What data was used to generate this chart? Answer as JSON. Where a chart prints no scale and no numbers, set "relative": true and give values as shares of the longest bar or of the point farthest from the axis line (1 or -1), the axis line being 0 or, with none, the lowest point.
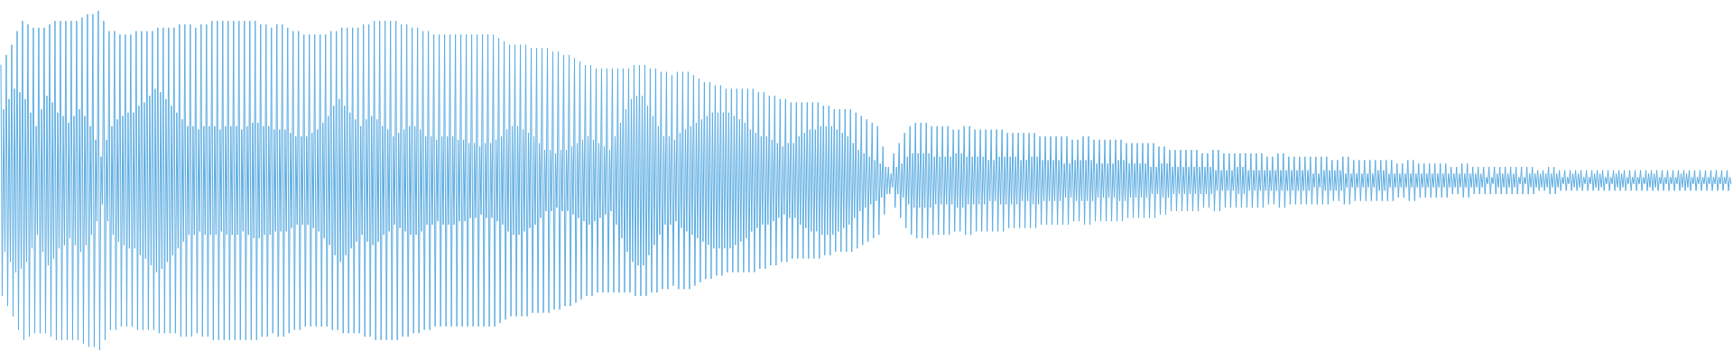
{
  "chart_data": {
    "type": "line",
    "relative": true,
    "categories": [
      null,
      null,
      null,
      null,
      null,
      null,
      null,
      null,
      null,
      null,
      null,
      null,
      null,
      null,
      null,
      null,
      null,
      null,
      null,
      null,
      null,
      null,
      null,
      null,
      null,
      null,
      null,
      null,
      null,
      null,
      null,
      null,
      null,
      null,
      null,
      null,
      null,
      null,
      null,
      null,
      null,
      null,
      null,
      null,
      null,
      null,
      null,
      null,
      null,
      null,
      null,
      null,
      null,
      null,
      null,
      null,
      null,
      null,
      null,
      null,
      null,
      null,
      null,
      null,
      null,
      null,
      null,
      null,
      null,
      null,
      null,
      null,
      null,
      null,
      null,
      null,
      null,
      null,
      null,
      null,
      null,
      null,
      null,
      null,
      null,
      null,
      null,
      null,
      null,
      null,
      null,
      null,
      null,
      null,
      null,
      null,
      null,
      null,
      null,
      null,
      null,
      null,
      null,
      null,
      null,
      null,
      null,
      null,
      null,
      null,
      null,
      null,
      null,
      null,
      null,
      null,
      null,
      null,
      null,
      null,
      null,
      null,
      null,
      null,
      null,
      null,
      null,
      null,
      null,
      null,
      null,
      null,
      null,
      null,
      null,
      null,
      null,
      null,
      null,
      null,
      null,
      null,
      null,
      null,
      null,
      null,
      null,
      null,
      null,
      null,
      null,
      null,
      null,
      null,
      null,
      null,
      null,
      null,
      null,
      null,
      null,
      null,
      null,
      null,
      null,
      null,
      null,
      null,
      null,
      null,
      null,
      null,
      null,
      null,
      null,
      null,
      null,
      null,
      null,
      null,
      null,
      null,
      null,
      null,
      null,
      null,
      null,
      null,
      null,
      null,
      null,
      null,
      null,
      null,
      null,
      null,
      null,
      null,
      null,
      null,
      null,
      null,
      null,
      null,
      null,
      null,
      null,
      null,
      null,
      null,
      null,
      null,
      null,
      null,
      null,
      null,
      null,
      null,
      null,
      null,
      null,
      null,
      null,
      null,
      null,
      null,
      null,
      null,
      null,
      null,
      null,
      null,
      null,
      null,
      null,
      null,
      null,
      null,
      null,
      null,
      null,
      null,
      null,
      null,
      null,
      null,
      null,
      null,
      null,
      null,
      null,
      null,
      null,
      null,
      null,
      null,
      null,
      null,
      null,
      null,
      null,
      null,
      null,
      null,
      null,
      null,
      null,
      null,
      null,
      null,
      null,
      null,
      null,
      null,
      null,
      null,
      null,
      null,
      null,
      null,
      null,
      null,
      null,
      null,
      null,
      null,
      null,
      null,
      null,
      null,
      null,
      null,
      null,
      null,
      null,
      null,
      null,
      null,
      null,
      null,
      null,
      null,
      null,
      null,
      null,
      null,
      null,
      null,
      null,
      null,
      null,
      null,
      null,
      null,
      null,
      null,
      null,
      null,
      null,
      null,
      null,
      null,
      null,
      null,
      null,
      null,
      null,
      null,
      null,
      null,
      null,
      null,
      null,
      null,
      null,
      null,
      null,
      null,
      null,
      null,
      null,
      null,
      null,
      null,
      null,
      null,
      null,
      null,
      null,
      null,
      null,
      null,
      null,
      null,
      null,
      null,
      null,
      null,
      null,
      null,
      null,
      null,
      null,
      null,
      null,
      null,
      null,
      null,
      null,
      null,
      null,
      null,
      null,
      null,
      null,
      null,
      null,
      null,
      null,
      null,
      null,
      null,
      null,
      null,
      null,
      null,
      null,
      null,
      null,
      null,
      null,
      null,
      null,
      null,
      null,
      null,
      null,
      null,
      null,
      null,
      null,
      null,
      null,
      null,
      null,
      null,
      null,
      null,
      null,
      null,
      null,
      null,
      null,
      null,
      null,
      null,
      null,
      null,
      null,
      null,
      null,
      null,
      null,
      null,
      null,
      null,
      null,
      null,
      null,
      null,
      null,
      null,
      null,
      null,
      null,
      null,
      null,
      null,
      null,
      null,
      null,
      null,
      null,
      null,
      null,
      null,
      null,
      null,
      null,
      null,
      null,
      null,
      null,
      null,
      null,
      null,
      null,
      null,
      null,
      null,
      null,
      null,
      null,
      null,
      null,
      null,
      null,
      null,
      null,
      null,
      null,
      null,
      null,
      null,
      null,
      null,
      null,
      null,
      null,
      null,
      null,
      null,
      null,
      null,
      null,
      null,
      null,
      null,
      null,
      null,
      null,
      null,
      null,
      null,
      null,
      null,
      null,
      null,
      null,
      null,
      null,
      null,
      null,
      null,
      null,
      null,
      null,
      null,
      null,
      null,
      null,
      null,
      null,
      null,
      null,
      null,
      null,
      null,
      null,
      null,
      null,
      null,
      null,
      null,
      null,
      null,
      null,
      null,
      null,
      null,
      null,
      null,
      null,
      null,
      null,
      null,
      null,
      null,
      null,
      null,
      null,
      null,
      null,
      null,
      null,
      null,
      null,
      null,
      null,
      null,
      null,
      null,
      null,
      null,
      null,
      null,
      null,
      null,
      null,
      null,
      null,
      null,
      null,
      null,
      null,
      null,
      null,
      null,
      null,
      null,
      null,
      null,
      null,
      null,
      null,
      null,
      null,
      null,
      null,
      null,
      null,
      null,
      null,
      null,
      null,
      null,
      null,
      null,
      null,
      null,
      null,
      null,
      null,
      null,
      null,
      null,
      null,
      null,
      null,
      null,
      null,
      null,
      null,
      null,
      null,
      null,
      null,
      null,
      null,
      null,
      null,
      null,
      null,
      null,
      null,
      null,
      null,
      null,
      null,
      null,
      null,
      null,
      null,
      null,
      null,
      null,
      null,
      null,
      null,
      null,
      null,
      null,
      null,
      null,
      null,
      null,
      null,
      null,
      null,
      null,
      null,
      null,
      null,
      null,
      null,
      null,
      null,
      null,
      null,
      null,
      null,
      null,
      null,
      null,
      null,
      null,
      null,
      null,
      null,
      null,
      null,
      null,
      null,
      null,
      null,
      null,
      null,
      null,
      null,
      null,
      null,
      null,
      null,
      null,
      null,
      null,
      null,
      null,
      null,
      null,
      null,
      null,
      null,
      null,
      null,
      null,
      null,
      null,
      null,
      null,
      null,
      null,
      null,
      null,
      null,
      null,
      null,
      null,
      null,
      null,
      null,
      null,
      null,
      null,
      null,
      null,
      null,
      null,
      null,
      null,
      null,
      null,
      null,
      null,
      null,
      null,
      null,
      null,
      null,
      null,
      null,
      null,
      null,
      null,
      null,
      null,
      null,
      null,
      null,
      null,
      null,
      null,
      null,
      null,
      null,
      null,
      null,
      null,
      null,
      null,
      null,
      null,
      null,
      null,
      null,
      null,
      null,
      null,
      null,
      null,
      null,
      null,
      null,
      null,
      null,
      null,
      null,
      null,
      null,
      null,
      null,
      null,
      null,
      null,
      null,
      null,
      null,
      null,
      null,
      null,
      null,
      null,
      null,
      null,
      null,
      null,
      null,
      null,
      null,
      null,
      null,
      null,
      null,
      null,
      null,
      null,
      null,
      null,
      null,
      null,
      null,
      null,
      null,
      null,
      null,
      null,
      null,
      null,
      null,
      null,
      null,
      null,
      null,
      null,
      null,
      null,
      null,
      null,
      null,
      null,
      null,
      null,
      null,
      null,
      null,
      null,
      null,
      null,
      null,
      null,
      null,
      null,
      null,
      null,
      null,
      null,
      null,
      null,
      null,
      null,
      null,
      null,
      null,
      null,
      null,
      null,
      null,
      null,
      null,
      null,
      null,
      null,
      null,
      null,
      null,
      null,
      null,
      null,
      null,
      null,
      null,
      null,
      null,
      null,
      null,
      null,
      null,
      null,
      null,
      null,
      null,
      null,
      null,
      null,
      null,
      null,
      null,
      null,
      null,
      null,
      null,
      null,
      null,
      null,
      null,
      null,
      null,
      null,
      null,
      null,
      null,
      null,
      null,
      null,
      null,
      null,
      null,
      null,
      null,
      null,
      null,
      null,
      null,
      null,
      null,
      null,
      null,
      null,
      null,
      null,
      null,
      null,
      null,
      null,
      null,
      null,
      null,
      null,
      null,
      null,
      null,
      null,
      null,
      null,
      null,
      null,
      null,
      null,
      null,
      null,
      null,
      null,
      null,
      null,
      null,
      null,
      null,
      null,
      null,
      null,
      null,
      null,
      null,
      null,
      null,
      null,
      null,
      null,
      null,
      null,
      null,
      null,
      null,
      null,
      null,
      null,
      null,
      null,
      null,
      null,
      null,
      null,
      null,
      null,
      null,
      null,
      null,
      null,
      null,
      null,
      null,
      null,
      null,
      null,
      null,
      null,
      null,
      null,
      null,
      null,
      null,
      null,
      null,
      null,
      null,
      null,
      null,
      null,
      null,
      null,
      null,
      null,
      null,
      null,
      null,
      null,
      null,
      null,
      null,
      null,
      null,
      null,
      null,
      null,
      null,
      null,
      null,
      null,
      null,
      null,
      null,
      null,
      null,
      null,
      null,
      null,
      null,
      null,
      null,
      null,
      null,
      null,
      null,
      null,
      null,
      null,
      null,
      null,
      null,
      null,
      null,
      null,
      null,
      null,
      null,
      null,
      null,
      null,
      null,
      null,
      null,
      null,
      null,
      null,
      null,
      null,
      null,
      null,
      null,
      null,
      null,
      null,
      null,
      null,
      null,
      null,
      null,
      null,
      null,
      null,
      null,
      null,
      null,
      null,
      null,
      null,
      null,
      null,
      null,
      null,
      null,
      null,
      null,
      null,
      null,
      null,
      null,
      null,
      null,
      null,
      null,
      null,
      null,
      null,
      null,
      null,
      null,
      null,
      null,
      null,
      null,
      null,
      null,
      null,
      null,
      null,
      null,
      null,
      null,
      null,
      null,
      null,
      null,
      null,
      null,
      null,
      null,
      null,
      null,
      null,
      null,
      null,
      null,
      null,
      null,
      null,
      null,
      null,
      null,
      null,
      null,
      null,
      null,
      null,
      null,
      null,
      null,
      null,
      null,
      null,
      null,
      null,
      null,
      null,
      null,
      null,
      null,
      null,
      null,
      null,
      null,
      null,
      null,
      null,
      null,
      null,
      null,
      null,
      null,
      null,
      null,
      null,
      null,
      null,
      null,
      null,
      null,
      null,
      null,
      null,
      null,
      null,
      null,
      null,
      null,
      null,
      null,
      null,
      null,
      null,
      null,
      null,
      null,
      null,
      null,
      null,
      null,
      null,
      null,
      null,
      null,
      null,
      null,
      null,
      null,
      null,
      null,
      null,
      null,
      null,
      null,
      null,
      null,
      null,
      null,
      null,
      null,
      null,
      null,
      null,
      null,
      null,
      null,
      null,
      null,
      null,
      null,
      null,
      null,
      null,
      null,
      null,
      null,
      null,
      null,
      null,
      null,
      null,
      null,
      null,
      null,
      null,
      null,
      null,
      null,
      null,
      null,
      null,
      null,
      null,
      null,
      null,
      null,
      null,
      null,
      null,
      null,
      null,
      null,
      null,
      null,
      null,
      null,
      null,
      null,
      null,
      null,
      null,
      null,
      null,
      null,
      null,
      null,
      null,
      null,
      null,
      null,
      null,
      null,
      null,
      null,
      null,
      null,
      null,
      null,
      null,
      null,
      null,
      null,
      null,
      null,
      null,
      null,
      null,
      null,
      null,
      null,
      null,
      null,
      null,
      null,
      null,
      null,
      null,
      null,
      null,
      null,
      null,
      null,
      null
    ],
    "series": [
      {
        "color": "#5dade2",
        "values": [
          0.84,
          0.16,
          0.71,
          0.29,
          0.87,
          0.13,
          0.74,
          0.26,
          0.9,
          0.1,
          0.77,
          0.23,
          0.94,
          0.06,
          0.76,
          0.24,
          0.97,
          0.03,
          0.74,
          0.26,
          0.96,
          0.04,
          0.7,
          0.3,
          0.95,
          0.05,
          0.66,
          0.34,
          0.95,
          0.05,
          0.71,
          0.29,
          0.95,
          0.05,
          0.75,
          0.25,
          0.96,
          0.04,
          0.73,
          0.27,
          0.97,
          0.03,
          0.7,
          0.3,
          0.97,
          0.03,
          0.69,
          0.31,
          0.97,
          0.03,
          0.67,
          0.33,
          0.97,
          0.03,
          0.69,
          0.31,
          0.97,
          0.03,
          0.71,
          0.29,
          0.98,
          0.02,
          0.69,
          0.31,
          0.99,
          0.01,
          0.66,
          0.34,
          0.99,
          0.01,
          0.62,
          0.38,
          1,
          0,
          0.57,
          0.43,
          0.97,
          0.03,
          0.62,
          0.38,
          0.94,
          0.06,
          0.66,
          0.34,
          0.94,
          0.06,
          0.68,
          0.32,
          0.93,
          0.07,
          0.69,
          0.31,
          0.93,
          0.07,
          0.7,
          0.3,
          0.93,
          0.07,
          0.7,
          0.3,
          0.94,
          0.06,
          0.72,
          0.28,
          0.94,
          0.06,
          0.73,
          0.27,
          0.94,
          0.06,
          0.75,
          0.25,
          0.94,
          0.06,
          0.77,
          0.23,
          0.95,
          0.05,
          0.76,
          0.24,
          0.95,
          0.05,
          0.74,
          0.26,
          0.95,
          0.05,
          0.72,
          0.28,
          0.95,
          0.05,
          0.7,
          0.3,
          0.96,
          0.04,
          0.68,
          0.32,
          0.96,
          0.04,
          0.66,
          0.34,
          0.96,
          0.04,
          0.66,
          0.34,
          0.95,
          0.05,
          0.65,
          0.35,
          0.96,
          0.04,
          0.66,
          0.34,
          0.96,
          0.04,
          0.66,
          0.34,
          0.97,
          0.03,
          0.66,
          0.34,
          0.97,
          0.03,
          0.65,
          0.35,
          0.97,
          0.03,
          0.66,
          0.34,
          0.97,
          0.03,
          0.66,
          0.34,
          0.97,
          0.03,
          0.66,
          0.34,
          0.97,
          0.03,
          0.65,
          0.35,
          0.97,
          0.03,
          0.66,
          0.34,
          0.97,
          0.03,
          0.67,
          0.33,
          0.97,
          0.03,
          0.67,
          0.33,
          0.96,
          0.04,
          0.66,
          0.34,
          0.96,
          0.04,
          0.66,
          0.34,
          0.95,
          0.05,
          0.65,
          0.35,
          0.96,
          0.04,
          0.65,
          0.35,
          0.96,
          0.04,
          0.65,
          0.35,
          0.95,
          0.05,
          0.64,
          0.36,
          0.94,
          0.06,
          0.63,
          0.37,
          0.94,
          0.06,
          0.63,
          0.37,
          0.93,
          0.07,
          0.63,
          0.37,
          0.93,
          0.07,
          0.64,
          0.36,
          0.93,
          0.07,
          0.65,
          0.35,
          0.93,
          0.07,
          0.67,
          0.33,
          0.93,
          0.07,
          0.69,
          0.31,
          0.94,
          0.06,
          0.72,
          0.28,
          0.94,
          0.06,
          0.74,
          0.26,
          0.95,
          0.05,
          0.72,
          0.28,
          0.95,
          0.05,
          0.7,
          0.3,
          0.95,
          0.05,
          0.68,
          0.32,
          0.95,
          0.05,
          0.66,
          0.34,
          0.96,
          0.04,
          0.68,
          0.32,
          0.96,
          0.04,
          0.69,
          0.31,
          0.97,
          0.03,
          0.68,
          0.32,
          0.97,
          0.03,
          0.66,
          0.34,
          0.97,
          0.03,
          0.65,
          0.35,
          0.97,
          0.03,
          0.63,
          0.37,
          0.97,
          0.03,
          0.64,
          0.36,
          0.96,
          0.04,
          0.65,
          0.35,
          0.96,
          0.04,
          0.66,
          0.34,
          0.95,
          0.05,
          0.66,
          0.34,
          0.95,
          0.05,
          0.65,
          0.35,
          0.94,
          0.06,
          0.63,
          0.37,
          0.94,
          0.06,
          0.63,
          0.37,
          0.93,
          0.07,
          0.62,
          0.38,
          0.93,
          0.07,
          0.63,
          0.37,
          0.93,
          0.07,
          0.63,
          0.37,
          0.93,
          0.07,
          0.63,
          0.37,
          0.93,
          0.07,
          0.62,
          0.38,
          0.93,
          0.07,
          0.62,
          0.38,
          0.93,
          0.07,
          0.61,
          0.39,
          0.93,
          0.07,
          0.61,
          0.39,
          0.93,
          0.07,
          0.6,
          0.4,
          0.93,
          0.07,
          0.61,
          0.39,
          0.93,
          0.07,
          0.61,
          0.39,
          0.93,
          0.07,
          0.62,
          0.38,
          0.92,
          0.08,
          0.63,
          0.37,
          0.91,
          0.09,
          0.65,
          0.35,
          0.9,
          0.1,
          0.66,
          0.34,
          0.9,
          0.1,
          0.66,
          0.34,
          0.9,
          0.1,
          0.65,
          0.35,
          0.9,
          0.1,
          0.64,
          0.36,
          0.89,
          0.11,
          0.63,
          0.37,
          0.89,
          0.11,
          0.61,
          0.39,
          0.89,
          0.11,
          0.59,
          0.41,
          0.89,
          0.11,
          0.59,
          0.41,
          0.88,
          0.12,
          0.58,
          0.42,
          0.88,
          0.12,
          0.59,
          0.41,
          0.87,
          0.13,
          0.59,
          0.41,
          0.87,
          0.13,
          0.6,
          0.4,
          0.86,
          0.14,
          0.61,
          0.39,
          0.85,
          0.15,
          0.62,
          0.38,
          0.84,
          0.16,
          0.63,
          0.37,
          0.84,
          0.16,
          0.62,
          0.38,
          0.83,
          0.17,
          0.61,
          0.39,
          0.83,
          0.17,
          0.6,
          0.4,
          0.83,
          0.17,
          0.59,
          0.41,
          0.83,
          0.17,
          0.63,
          0.37,
          0.83,
          0.17,
          0.67,
          0.33,
          0.83,
          0.17,
          0.71,
          0.29,
          0.83,
          0.17,
          0.74,
          0.26,
          0.84,
          0.16,
          0.75,
          0.25,
          0.84,
          0.16,
          0.75,
          0.25,
          0.84,
          0.16,
          0.72,
          0.28,
          0.83,
          0.17,
          0.69,
          0.31,
          0.83,
          0.17,
          0.66,
          0.34,
          0.82,
          0.18,
          0.63,
          0.37,
          0.82,
          0.18,
          0.63,
          0.37,
          0.81,
          0.19,
          0.62,
          0.38,
          0.82,
          0.18,
          0.64,
          0.36,
          0.82,
          0.18,
          0.65,
          0.35,
          0.82,
          0.18,
          0.66,
          0.34,
          0.81,
          0.19,
          0.67,
          0.33,
          0.8,
          0.2,
          0.68,
          0.32,
          0.79,
          0.21,
          0.69,
          0.31,
          0.79,
          0.21,
          0.7,
          0.3,
          0.78,
          0.22,
          0.7,
          0.3,
          0.78,
          0.22,
          0.7,
          0.3,
          0.77,
          0.23,
          0.7,
          0.3,
          0.77,
          0.23,
          0.69,
          0.31,
          0.77,
          0.23,
          0.68,
          0.32,
          0.77,
          0.23,
          0.67,
          0.33,
          0.77,
          0.23,
          0.65,
          0.35,
          0.77,
          0.23,
          0.64,
          0.36,
          0.76,
          0.24,
          0.63,
          0.37,
          0.76,
          0.24,
          0.63,
          0.37,
          0.75,
          0.25,
          0.62,
          0.38,
          0.75,
          0.25,
          0.61,
          0.39,
          0.74,
          0.26,
          0.6,
          0.4,
          0.74,
          0.26,
          0.61,
          0.39,
          0.73,
          0.27,
          0.61,
          0.39,
          0.73,
          0.27,
          0.63,
          0.37,
          0.73,
          0.27,
          0.64,
          0.36,
          0.73,
          0.27,
          0.65,
          0.35,
          0.73,
          0.27,
          0.65,
          0.35,
          0.73,
          0.27,
          0.66,
          0.34,
          0.72,
          0.28,
          0.66,
          0.34,
          0.72,
          0.28,
          0.66,
          0.34,
          0.71,
          0.29,
          0.65,
          0.35,
          0.71,
          0.29,
          0.64,
          0.36,
          0.71,
          0.29,
          0.63,
          0.37,
          0.71,
          0.29,
          0.61,
          0.39,
          0.7,
          0.3,
          0.59,
          0.41,
          0.69,
          0.31,
          0.58,
          0.42,
          0.68,
          0.32,
          0.57,
          0.43,
          0.67,
          0.33,
          0.56,
          0.44,
          0.66,
          0.34,
          0.55,
          0.45,
          0.6,
          0.4,
          0.54,
          0.46,
          0.54,
          0.46,
          0.52,
          0.48,
          0.58,
          0.42,
          0.54,
          0.46,
          0.61,
          0.39,
          0.55,
          0.45,
          0.64,
          0.36,
          0.57,
          0.43,
          0.66,
          0.34,
          0.58,
          0.42,
          0.67,
          0.33,
          0.58,
          0.42,
          0.67,
          0.33,
          0.58,
          0.42,
          0.67,
          0.33,
          0.58,
          0.42,
          0.66,
          0.34,
          0.57,
          0.43,
          0.66,
          0.34,
          0.57,
          0.43,
          0.66,
          0.34,
          0.57,
          0.43,
          0.66,
          0.34,
          0.57,
          0.43,
          0.65,
          0.35,
          0.58,
          0.42,
          0.65,
          0.35,
          0.58,
          0.42,
          0.66,
          0.34,
          0.57,
          0.43,
          0.66,
          0.34,
          0.57,
          0.43,
          0.65,
          0.35,
          0.57,
          0.43,
          0.65,
          0.35,
          0.57,
          0.43,
          0.65,
          0.35,
          0.56,
          0.44,
          0.65,
          0.35,
          0.56,
          0.44,
          0.65,
          0.35,
          0.57,
          0.43,
          0.65,
          0.35,
          0.57,
          0.43,
          0.64,
          0.36,
          0.57,
          0.43,
          0.64,
          0.36,
          0.57,
          0.43,
          0.64,
          0.36,
          0.56,
          0.44,
          0.64,
          0.36,
          0.56,
          0.44,
          0.64,
          0.36,
          0.57,
          0.43,
          0.64,
          0.36,
          0.57,
          0.43,
          0.63,
          0.37,
          0.56,
          0.44,
          0.63,
          0.37,
          0.56,
          0.44,
          0.63,
          0.37,
          0.56,
          0.44,
          0.63,
          0.37,
          0.56,
          0.44,
          0.63,
          0.37,
          0.55,
          0.45,
          0.63,
          0.37,
          0.55,
          0.45,
          0.62,
          0.38,
          0.56,
          0.44,
          0.62,
          0.38,
          0.56,
          0.44,
          0.63,
          0.37,
          0.56,
          0.44,
          0.63,
          0.37,
          0.56,
          0.44,
          0.62,
          0.38,
          0.55,
          0.45,
          0.62,
          0.38,
          0.55,
          0.45,
          0.62,
          0.38,
          0.55,
          0.45,
          0.62,
          0.38,
          0.55,
          0.45,
          0.62,
          0.38,
          0.56,
          0.44,
          0.62,
          0.38,
          0.56,
          0.44,
          0.61,
          0.39,
          0.55,
          0.45,
          0.61,
          0.39,
          0.55,
          0.45,
          0.61,
          0.39,
          0.55,
          0.45,
          0.61,
          0.39,
          0.55,
          0.45,
          0.61,
          0.39,
          0.54,
          0.46,
          0.61,
          0.39,
          0.54,
          0.46,
          0.6,
          0.4,
          0.55,
          0.45,
          0.6,
          0.4,
          0.55,
          0.45,
          0.59,
          0.41,
          0.54,
          0.46,
          0.59,
          0.41,
          0.54,
          0.46,
          0.59,
          0.41,
          0.54,
          0.46,
          0.59,
          0.41,
          0.54,
          0.46,
          0.59,
          0.41,
          0.54,
          0.46,
          0.59,
          0.41,
          0.54,
          0.46,
          0.58,
          0.42,
          0.54,
          0.46,
          0.58,
          0.42,
          0.54,
          0.46,
          0.59,
          0.41,
          0.53,
          0.47,
          0.59,
          0.41,
          0.53,
          0.47,
          0.58,
          0.42,
          0.53,
          0.47,
          0.58,
          0.42,
          0.53,
          0.47,
          0.58,
          0.42,
          0.54,
          0.46,
          0.58,
          0.42,
          0.54,
          0.46,
          0.58,
          0.42,
          0.53,
          0.47,
          0.58,
          0.42,
          0.53,
          0.47,
          0.58,
          0.42,
          0.53,
          0.47,
          0.58,
          0.42,
          0.53,
          0.47,
          0.57,
          0.43,
          0.53,
          0.47,
          0.57,
          0.43,
          0.53,
          0.47,
          0.58,
          0.42,
          0.53,
          0.47,
          0.58,
          0.42,
          0.53,
          0.47,
          0.57,
          0.43,
          0.53,
          0.47,
          0.57,
          0.43,
          0.53,
          0.47,
          0.57,
          0.43,
          0.53,
          0.47,
          0.57,
          0.43,
          0.53,
          0.47,
          0.57,
          0.43,
          0.52,
          0.48,
          0.57,
          0.43,
          0.52,
          0.48,
          0.57,
          0.43,
          0.53,
          0.47,
          0.57,
          0.43,
          0.53,
          0.47,
          0.56,
          0.44,
          0.53,
          0.47,
          0.56,
          0.44,
          0.53,
          0.47,
          0.57,
          0.43,
          0.52,
          0.48,
          0.57,
          0.43,
          0.52,
          0.48,
          0.56,
          0.44,
          0.52,
          0.48,
          0.56,
          0.44,
          0.52,
          0.48,
          0.56,
          0.44,
          0.52,
          0.48,
          0.56,
          0.44,
          0.52,
          0.48,
          0.56,
          0.44,
          0.53,
          0.47,
          0.56,
          0.44,
          0.53,
          0.47,
          0.56,
          0.44,
          0.52,
          0.48,
          0.56,
          0.44,
          0.52,
          0.48,
          0.55,
          0.45,
          0.52,
          0.48,
          0.55,
          0.45,
          0.52,
          0.48,
          0.56,
          0.44,
          0.52,
          0.48,
          0.56,
          0.44,
          0.52,
          0.48,
          0.55,
          0.45,
          0.52,
          0.48,
          0.55,
          0.45,
          0.52,
          0.48,
          0.55,
          0.45,
          0.52,
          0.48,
          0.55,
          0.45,
          0.52,
          0.48,
          0.55,
          0.45,
          0.52,
          0.48,
          0.55,
          0.45,
          0.52,
          0.48,
          0.54,
          0.46,
          0.52,
          0.48,
          0.54,
          0.46,
          0.52,
          0.48,
          0.55,
          0.45,
          0.52,
          0.48,
          0.55,
          0.45,
          0.52,
          0.48,
          0.54,
          0.46,
          0.52,
          0.48,
          0.54,
          0.46,
          0.52,
          0.48,
          0.54,
          0.46,
          0.51,
          0.49,
          0.54,
          0.46,
          0.51,
          0.49,
          0.54,
          0.46,
          0.52,
          0.48,
          0.54,
          0.46,
          0.52,
          0.48,
          0.54,
          0.46,
          0.52,
          0.48,
          0.54,
          0.46,
          0.52,
          0.48,
          0.54,
          0.46,
          0.51,
          0.49,
          0.54,
          0.46,
          0.51,
          0.49,
          0.54,
          0.46,
          0.52,
          0.48,
          0.54,
          0.46,
          0.52,
          0.48,
          0.53,
          0.47,
          0.52,
          0.48,
          0.53,
          0.47,
          0.52,
          0.48,
          0.54,
          0.46,
          0.52,
          0.48,
          0.54,
          0.46,
          0.52,
          0.48,
          0.53,
          0.47,
          0.51,
          0.49,
          0.53,
          0.47,
          0.51,
          0.49,
          0.53,
          0.47,
          0.52,
          0.48,
          0.53,
          0.47,
          0.52,
          0.48,
          0.53,
          0.47,
          0.51,
          0.49,
          0.53,
          0.47,
          0.51,
          0.49,
          0.53,
          0.47,
          0.52,
          0.48,
          0.53,
          0.47,
          0.52,
          0.48,
          0.53,
          0.47,
          0.51,
          0.49,
          0.53,
          0.47,
          0.51,
          0.49,
          0.53,
          0.47,
          0.52,
          0.48,
          0.53,
          0.47,
          0.52,
          0.48,
          0.53,
          0.47,
          0.51,
          0.49,
          0.53,
          0.47,
          0.51,
          0.49,
          0.53,
          0.47,
          0.51,
          0.49,
          0.53,
          0.47,
          0.51,
          0.49,
          0.53,
          0.47,
          0.52,
          0.48,
          0.53,
          0.47,
          0.52,
          0.48,
          0.53,
          0.47,
          0.51,
          0.49,
          0.53,
          0.47,
          0.51,
          0.49,
          0.53,
          0.47,
          0.51,
          0.49,
          0.53,
          0.47,
          0.51,
          0.49,
          0.53,
          0.47,
          0.52,
          0.48,
          0.53,
          0.47,
          0.52,
          0.48,
          0.53,
          0.47,
          0.51,
          0.49,
          0.53,
          0.47,
          0.51,
          0.49,
          0.53,
          0.47,
          0.51,
          0.49,
          0.53,
          0.47,
          0.51,
          0.49,
          0.53,
          0.47,
          0.51,
          0.49,
          0.53,
          0.47,
          0.51,
          0.49,
          0.53,
          0.47,
          0.51,
          0.49,
          0.53,
          0.47,
          0.51,
          0.49
        ]
      }
    ]
  }
}
